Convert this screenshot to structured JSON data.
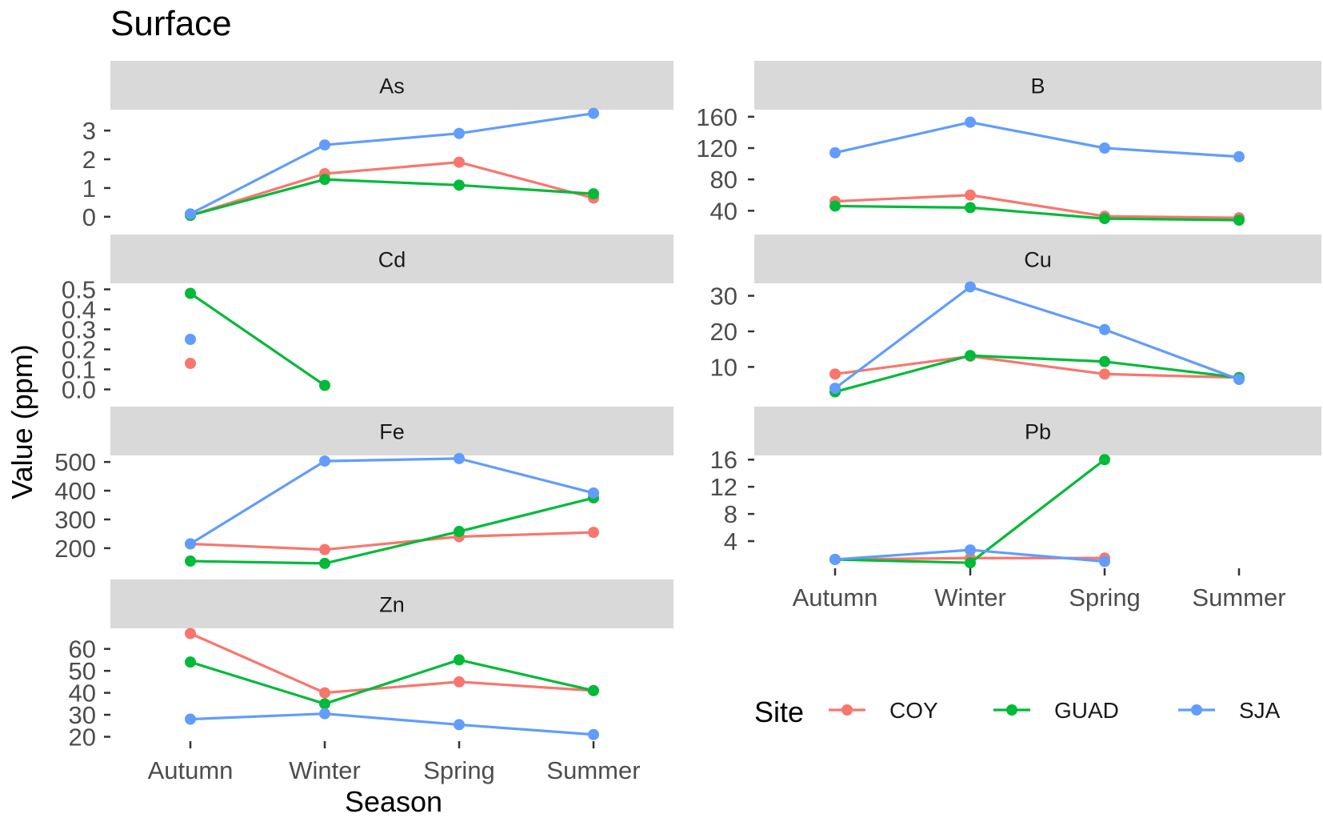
{
  "chart_data": {
    "type": "line",
    "title": "Surface",
    "xlabel": "Season",
    "ylabel": "Value (ppm)",
    "x": [
      "Autumn",
      "Winter",
      "Spring",
      "Summer"
    ],
    "legend": {
      "title": "Site",
      "placement": "bottom-right",
      "entries": [
        "COY",
        "GUAD",
        "SJA"
      ]
    },
    "series_colors": {
      "COY": "#F8766D",
      "GUAD": "#00BA38",
      "SJA": "#619CFF"
    },
    "grid": false,
    "panels": [
      {
        "name": "As",
        "ylim": [
          -0.2,
          3.7
        ],
        "yticks": [
          "0",
          "1",
          "2",
          "3"
        ],
        "ytick_values": [
          0,
          1,
          2,
          3
        ],
        "series": [
          {
            "name": "COY",
            "values": [
              0.05,
              1.5,
              1.9,
              0.65
            ]
          },
          {
            "name": "GUAD",
            "values": [
              0.05,
              1.3,
              1.1,
              0.8
            ]
          },
          {
            "name": "SJA",
            "values": [
              0.1,
              2.5,
              2.9,
              3.6
            ]
          }
        ]
      },
      {
        "name": "B",
        "ylim": [
          25,
          168
        ],
        "yticks": [
          "40",
          "80",
          "120",
          "160"
        ],
        "ytick_values": [
          40,
          80,
          120,
          160
        ],
        "series": [
          {
            "name": "COY",
            "values": [
              52,
              60,
              33,
              31
            ]
          },
          {
            "name": "GUAD",
            "values": [
              46,
              44,
              30,
              28
            ]
          },
          {
            "name": "SJA",
            "values": [
              114,
              153,
              120,
              109
            ]
          }
        ]
      },
      {
        "name": "Cd",
        "ylim": [
          -0.03,
          0.53
        ],
        "yticks": [
          "0.0",
          "0.1",
          "0.2",
          "0.3",
          "0.4",
          "0.5"
        ],
        "ytick_values": [
          0,
          0.1,
          0.2,
          0.3,
          0.4,
          0.5
        ],
        "series": [
          {
            "name": "COY",
            "values": [
              0.13,
              null,
              null,
              null
            ]
          },
          {
            "name": "GUAD",
            "values": [
              0.48,
              0.02,
              null,
              null
            ]
          },
          {
            "name": "SJA",
            "values": [
              0.25,
              null,
              null,
              null
            ]
          }
        ]
      },
      {
        "name": "Cu",
        "ylim": [
          2,
          33.5
        ],
        "yticks": [
          "10",
          "20",
          "30"
        ],
        "ytick_values": [
          10,
          20,
          30
        ],
        "series": [
          {
            "name": "COY",
            "values": [
              8,
              13,
              8,
              7
            ]
          },
          {
            "name": "GUAD",
            "values": [
              3,
              13.2,
              11.5,
              7
            ]
          },
          {
            "name": "SJA",
            "values": [
              4,
              32.5,
              20.5,
              6.5
            ]
          }
        ]
      },
      {
        "name": "Fe",
        "ylim": [
          130,
          520
        ],
        "yticks": [
          "200",
          "300",
          "400",
          "500"
        ],
        "ytick_values": [
          200,
          300,
          400,
          500
        ],
        "series": [
          {
            "name": "COY",
            "values": [
              215,
              195,
              240,
              255
            ]
          },
          {
            "name": "GUAD",
            "values": [
              155,
              147,
              258,
              375
            ]
          },
          {
            "name": "SJA",
            "values": [
              215,
              503,
              512,
              392
            ]
          }
        ]
      },
      {
        "name": "Pb",
        "ylim": [
          0,
          16.5
        ],
        "yticks": [
          "4",
          "8",
          "12",
          "16"
        ],
        "ytick_values": [
          4,
          8,
          12,
          16
        ],
        "series": [
          {
            "name": "COY",
            "values": [
              1.3,
              1.5,
              1.5,
              null
            ]
          },
          {
            "name": "GUAD",
            "values": [
              1.3,
              0.8,
              16,
              null
            ]
          },
          {
            "name": "SJA",
            "values": [
              1.3,
              2.7,
              1.0,
              null
            ]
          }
        ]
      },
      {
        "name": "Zn",
        "ylim": [
          18,
          69
        ],
        "yticks": [
          "20",
          "30",
          "40",
          "50",
          "60"
        ],
        "ytick_values": [
          20,
          30,
          40,
          50,
          60
        ],
        "series": [
          {
            "name": "COY",
            "values": [
              67,
              40,
              45,
              41
            ]
          },
          {
            "name": "GUAD",
            "values": [
              54,
              35,
              55,
              41
            ]
          },
          {
            "name": "SJA",
            "values": [
              28,
              30.5,
              25.5,
              21
            ]
          }
        ]
      }
    ]
  }
}
